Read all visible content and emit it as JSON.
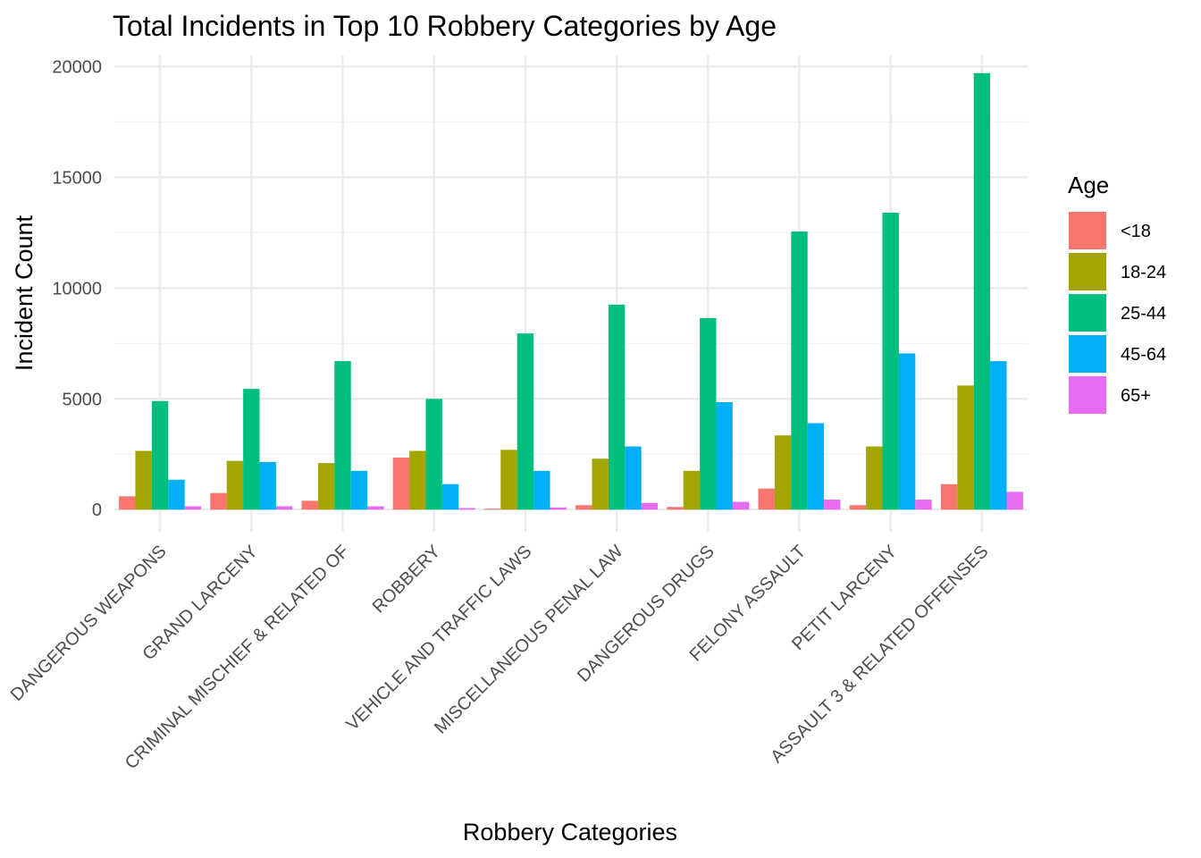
{
  "chart_data": {
    "type": "bar",
    "title": "Total Incidents in Top 10 Robbery Categories by Age",
    "xlabel": "Robbery Categories",
    "ylabel": "Incident Count",
    "ylim": [
      -1000,
      20500
    ],
    "yticks": [
      0,
      5000,
      10000,
      15000,
      20000
    ],
    "grid": true,
    "legend": {
      "title": "Age",
      "placement": "right"
    },
    "categories": [
      "DANGEROUS WEAPONS",
      "GRAND LARCENY",
      "CRIMINAL MISCHIEF & RELATED OF",
      "ROBBERY",
      "VEHICLE AND TRAFFIC LAWS",
      "MISCELLANEOUS PENAL LAW",
      "DANGEROUS DRUGS",
      "FELONY ASSAULT",
      "PETIT LARCENY",
      "ASSAULT 3 & RELATED OFFENSES"
    ],
    "series": [
      {
        "name": "<18",
        "color": "#F8766D",
        "values": [
          600,
          750,
          400,
          2350,
          30,
          200,
          120,
          950,
          200,
          1150
        ]
      },
      {
        "name": "18-24",
        "color": "#A3A500",
        "values": [
          2650,
          2200,
          2100,
          2650,
          2700,
          2300,
          1750,
          3350,
          2850,
          5600
        ]
      },
      {
        "name": "25-44",
        "color": "#00BF7D",
        "values": [
          4900,
          5450,
          6700,
          5000,
          7950,
          9250,
          8650,
          12550,
          13400,
          19700
        ]
      },
      {
        "name": "45-64",
        "color": "#00B0F6",
        "values": [
          1350,
          2150,
          1750,
          1150,
          1750,
          2850,
          4850,
          3900,
          7050,
          6700
        ]
      },
      {
        "name": "65+",
        "color": "#E76BF3",
        "values": [
          150,
          150,
          150,
          70,
          100,
          300,
          350,
          450,
          450,
          800
        ]
      }
    ]
  },
  "colors": {
    "grid_major": "#EBEBEB",
    "grid_minor": "#F5F5F5",
    "tick_text": "#4D4D4D"
  }
}
